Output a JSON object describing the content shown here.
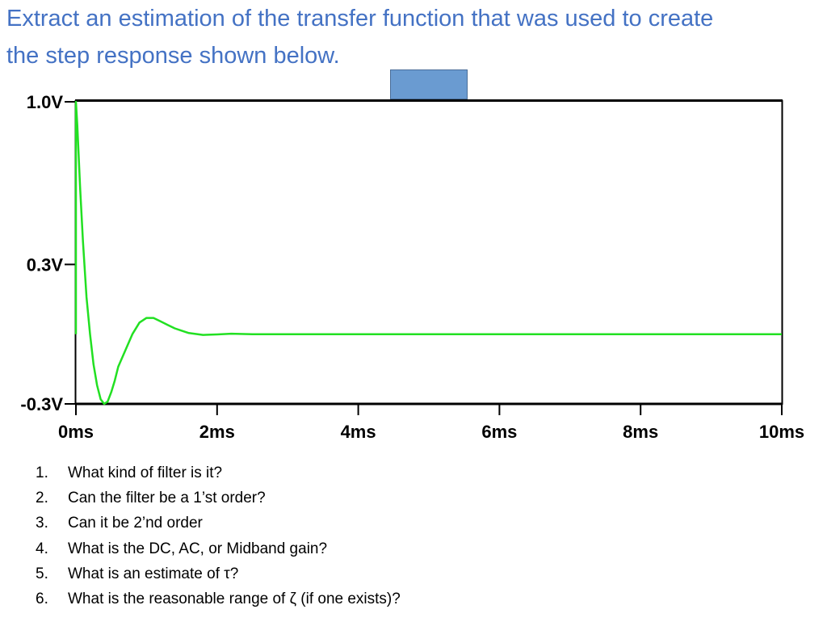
{
  "heading": {
    "line1": "Extract an estimation of the transfer function that was used to create",
    "line2": "the step response shown below."
  },
  "colors": {
    "heading": "#4472C4",
    "trace": "#22E022",
    "axis": "#000000",
    "rect": "#6A9BD1"
  },
  "chart_data": {
    "type": "line",
    "title": "",
    "xlabel": "",
    "ylabel": "",
    "xlim": [
      0,
      10
    ],
    "ylim": [
      -0.3,
      1.0
    ],
    "x_unit": "ms",
    "y_unit": "V",
    "x_ticks": [
      {
        "value": 0,
        "label": "0ms"
      },
      {
        "value": 2,
        "label": "2ms"
      },
      {
        "value": 4,
        "label": "4ms"
      },
      {
        "value": 6,
        "label": "6ms"
      },
      {
        "value": 8,
        "label": "8ms"
      },
      {
        "value": 10,
        "label": "10ms"
      }
    ],
    "y_ticks": [
      {
        "value": 1.0,
        "label": "1.0V"
      },
      {
        "value": 0.3,
        "label": "0.3V"
      },
      {
        "value": -0.3,
        "label": "-0.3V"
      }
    ],
    "series": [
      {
        "x": [
          0,
          0,
          0.02,
          0.06,
          0.1,
          0.15,
          0.2,
          0.25,
          0.3,
          0.35,
          0.4,
          0.45,
          0.5,
          0.55,
          0.6,
          0.7,
          0.8,
          0.9,
          1.0,
          1.1,
          1.2,
          1.3,
          1.4,
          1.5,
          1.6,
          1.8,
          2.0,
          2.2,
          2.5,
          3.0,
          4.0,
          6.0,
          8.0,
          10.0
        ],
        "y": [
          0.0,
          1.0,
          0.9,
          0.63,
          0.4,
          0.16,
          0.0,
          -0.13,
          -0.22,
          -0.28,
          -0.3,
          -0.29,
          -0.25,
          -0.2,
          -0.14,
          -0.07,
          0.0,
          0.05,
          0.07,
          0.07,
          0.055,
          0.04,
          0.025,
          0.015,
          0.005,
          -0.003,
          -0.001,
          0.002,
          0.0,
          0.0,
          0.0,
          0.0,
          0.0,
          0.0
        ]
      }
    ]
  },
  "questions": [
    {
      "num": "1.",
      "text": "What kind of filter is it?"
    },
    {
      "num": "2.",
      "text": "Can the filter be a 1’st order?"
    },
    {
      "num": "3.",
      "text": "Can it be 2’nd order"
    },
    {
      "num": "4.",
      "text": "What is the DC, AC, or Midband gain?"
    },
    {
      "num": "5.",
      "text": "What is an estimate of τ?"
    },
    {
      "num": "6.",
      "text": "What is the reasonable range of ζ (if one exists)?"
    }
  ]
}
